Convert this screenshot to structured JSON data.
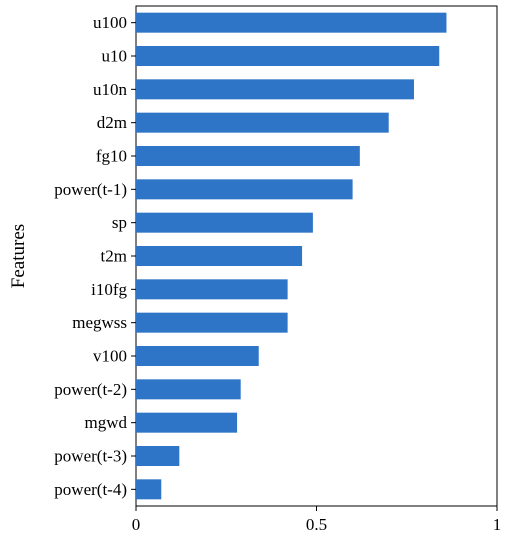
{
  "chart_data": {
    "type": "bar",
    "orientation": "horizontal",
    "categories": [
      "u100",
      "u10",
      "u10n",
      "d2m",
      "fg10",
      "power(t-1)",
      "sp",
      "t2m",
      "i10fg",
      "megwss",
      "v100",
      "power(t-2)",
      "mgwd",
      "power(t-3)",
      "power(t-4)"
    ],
    "values": [
      0.86,
      0.84,
      0.77,
      0.7,
      0.62,
      0.6,
      0.49,
      0.46,
      0.42,
      0.42,
      0.34,
      0.29,
      0.28,
      0.12,
      0.07
    ],
    "xlabel": "",
    "ylabel": "Features",
    "xlim": [
      0,
      1
    ],
    "xticks": [
      "0",
      "0.5",
      "1"
    ],
    "bar_color": "#2E75C8",
    "grid": false,
    "legend": "none"
  }
}
